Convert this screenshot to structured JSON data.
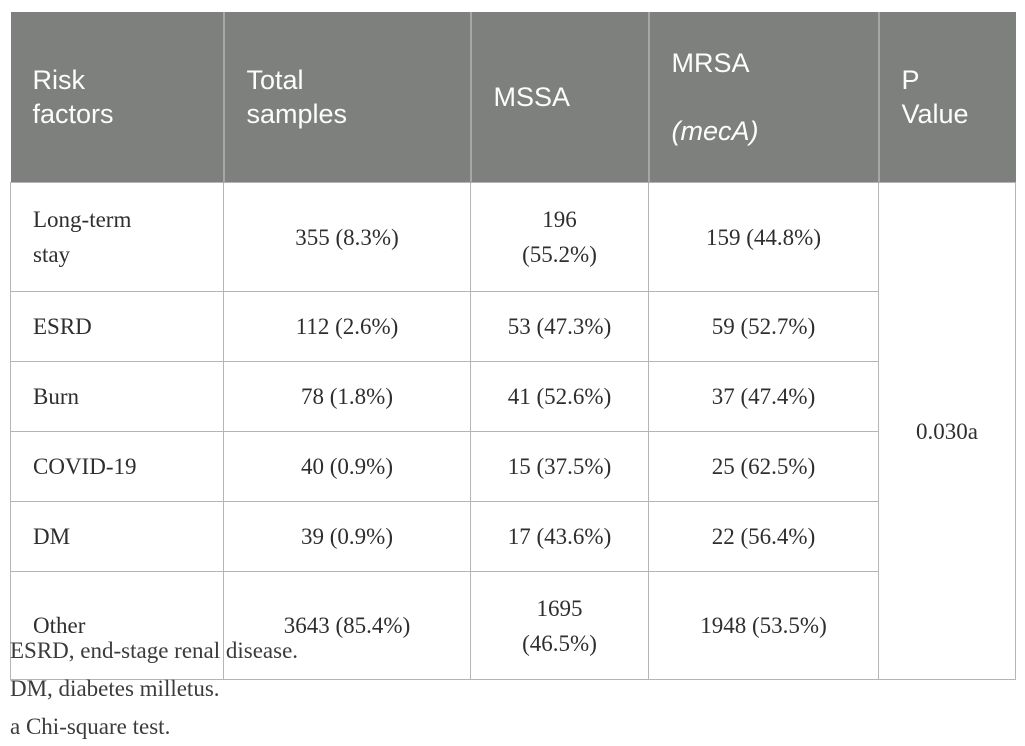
{
  "table": {
    "headers": {
      "risk_factors": "Risk\nfactors",
      "total_samples": "Total\nsamples",
      "mssa": "MSSA",
      "mrsa_name": "MRSA",
      "mrsa_gene": "(mecA)",
      "p_value": "P\nValue"
    },
    "rows": [
      {
        "risk_factor": "Long-term\nstay",
        "total_samples": "355 (8.3%)",
        "mssa": "196\n(55.2%)",
        "mrsa": "159 (44.8%)"
      },
      {
        "risk_factor": "ESRD",
        "total_samples": "112 (2.6%)",
        "mssa": "53 (47.3%)",
        "mrsa": "59 (52.7%)"
      },
      {
        "risk_factor": "Burn",
        "total_samples": "78 (1.8%)",
        "mssa": "41 (52.6%)",
        "mrsa": "37 (47.4%)"
      },
      {
        "risk_factor": "COVID-19",
        "total_samples": "40 (0.9%)",
        "mssa": "15 (37.5%)",
        "mrsa": "25 (62.5%)"
      },
      {
        "risk_factor": "DM",
        "total_samples": "39 (0.9%)",
        "mssa": "17 (43.6%)",
        "mrsa": "22 (56.4%)"
      },
      {
        "risk_factor": "Other",
        "total_samples": "3643 (85.4%)",
        "mssa": "1695\n(46.5%)",
        "mrsa": "1948 (53.5%)"
      }
    ],
    "p_value": "0.030a"
  },
  "footnotes": {
    "line1": "ESRD, end-stage renal disease.",
    "line2": "DM, diabetes milletus.",
    "line3": "a Chi-square test."
  },
  "colors": {
    "header_bg": "#7d807d",
    "header_separator": "#a5a7a5",
    "header_text": "#fdfdfd",
    "border": "#b5b5b5",
    "body_text": "#2e2e2e"
  }
}
